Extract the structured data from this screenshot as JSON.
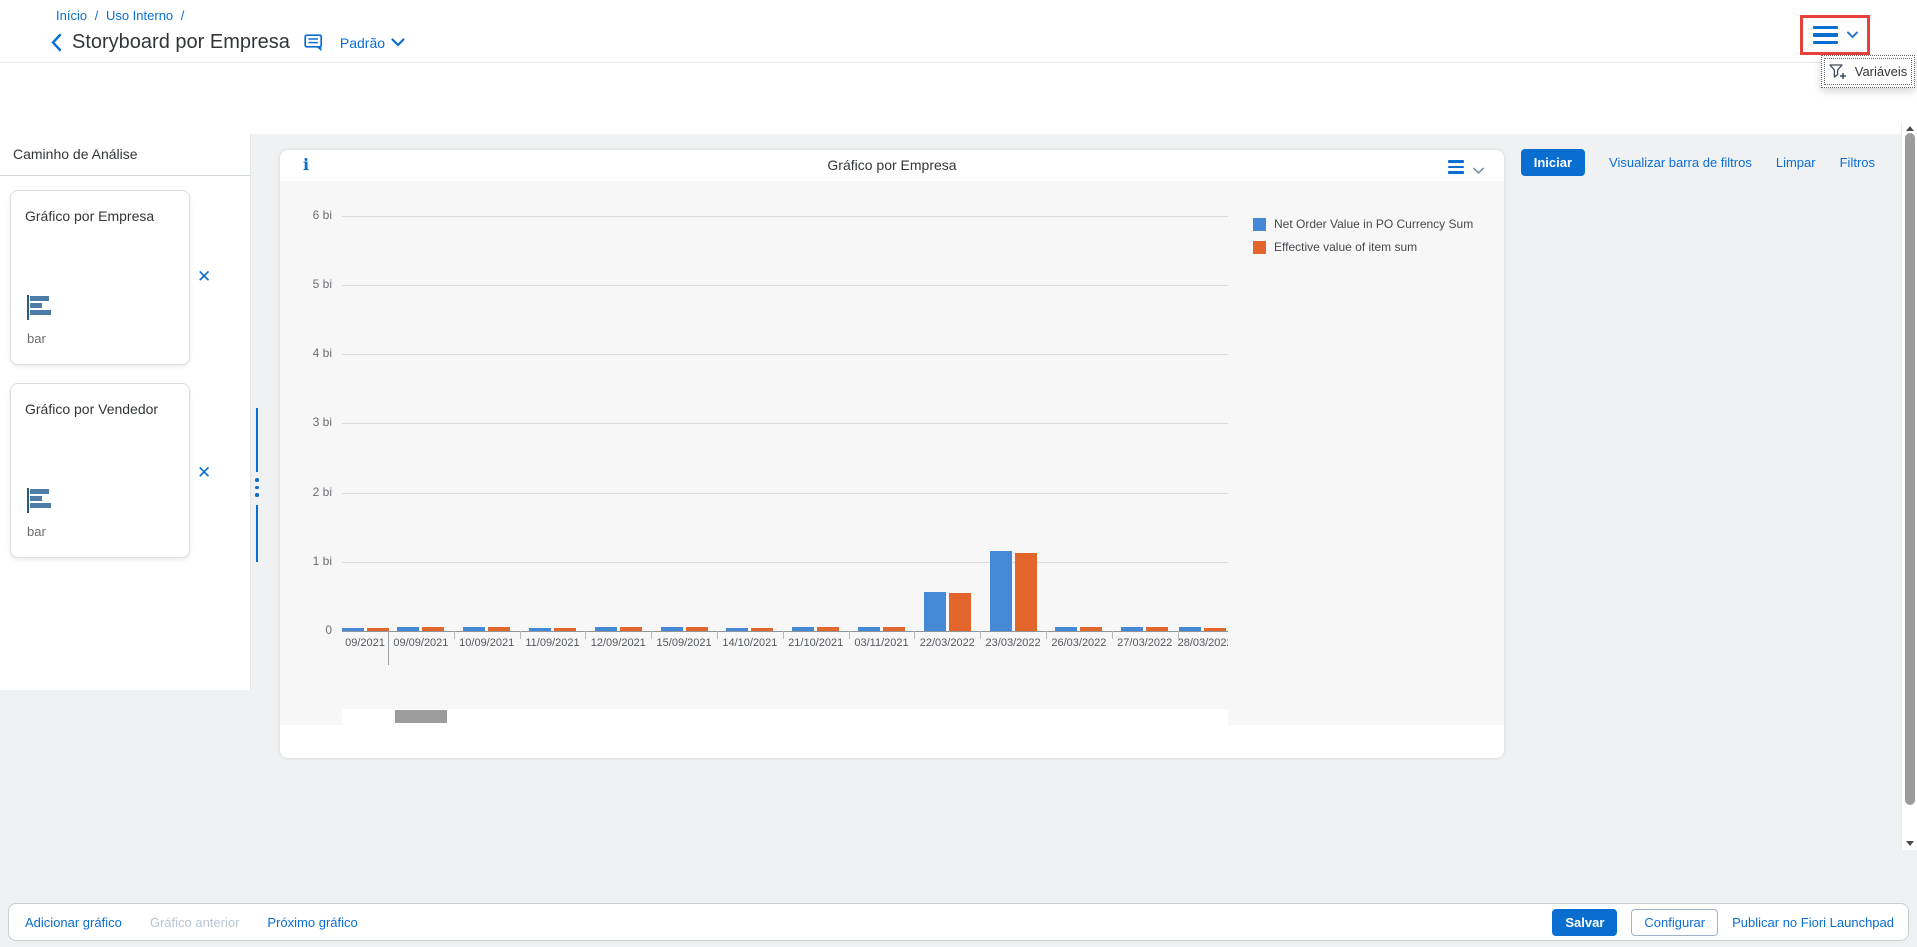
{
  "header": {
    "breadcrumb": {
      "links": [
        "Início",
        "Uso Interno"
      ],
      "separator": "/"
    },
    "title": "Storyboard por Empresa",
    "variant": "Padrão",
    "menu_popup": {
      "item": "Variáveis"
    }
  },
  "toolbar": {
    "iniciar": "Iniciar",
    "visualizar": "Visualizar barra de filtros",
    "limpar": "Limpar",
    "filtros": "Filtros"
  },
  "sidebar": {
    "title": "Caminho de Análise",
    "close_glyph": "✕",
    "cards": [
      {
        "title": "Gráfico por Empresa",
        "chart_type": "bar"
      },
      {
        "title": "Gráfico por Vendedor",
        "chart_type": "bar"
      }
    ]
  },
  "chart_panel": {
    "title": "Gráfico por Empresa",
    "info_glyph": "i"
  },
  "chart_data": {
    "type": "bar",
    "title": "Gráfico por Empresa",
    "categories": [
      "09/2021",
      "09/09/2021",
      "10/09/2021",
      "11/09/2021",
      "12/09/2021",
      "15/09/2021",
      "14/10/2021",
      "21/10/2021",
      "03/11/2021",
      "22/03/2022",
      "23/03/2022",
      "26/03/2022",
      "27/03/2022",
      "28/03/2022"
    ],
    "series": [
      {
        "name": "Net Order Value in PO Currency Sum",
        "color": "#4589d6",
        "values": [
          0.05,
          0.06,
          0.06,
          0.05,
          0.06,
          0.06,
          0.05,
          0.06,
          0.06,
          0.57,
          1.16,
          0.06,
          0.06,
          0.06
        ]
      },
      {
        "name": "Effective value of item sum",
        "color": "#e3662c",
        "values": [
          0.05,
          0.06,
          0.06,
          0.05,
          0.06,
          0.06,
          0.05,
          0.06,
          0.06,
          0.55,
          1.13,
          0.06,
          0.06,
          0.05
        ]
      }
    ],
    "y_ticks": [
      "6 bi",
      "5 bi",
      "4 bi",
      "3 bi",
      "2 bi",
      "1 bi",
      "0"
    ],
    "ylim": [
      0,
      6.5
    ],
    "unit": "bi",
    "grid": true,
    "legend_position": "top-right"
  },
  "footer": {
    "add_chart": "Adicionar gráfico",
    "previous_chart": "Gráfico anterior",
    "next_chart": "Próximo gráfico",
    "save": "Salvar",
    "configure": "Configurar",
    "publish": "Publicar no Fiori Launchpad"
  },
  "colors": {
    "primary": "#0a6ed1",
    "bar_blue": "#4589d6",
    "bar_orange": "#e3662c",
    "annotation_red": "#e8413c"
  }
}
